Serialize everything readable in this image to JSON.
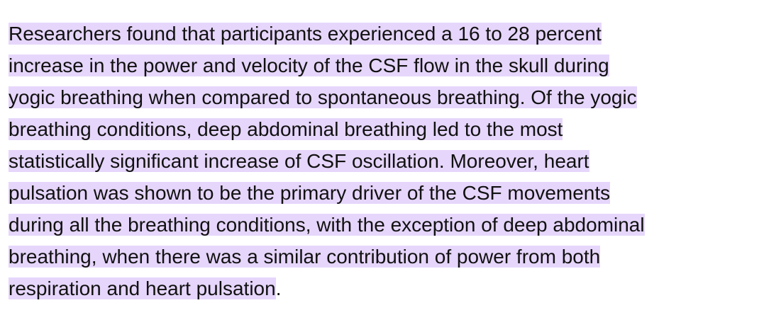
{
  "paragraph": {
    "lines": [
      "Researchers found that participants experienced a 16 to 28 percent",
      "increase in the power and velocity of the CSF flow in the skull during",
      "yogic breathing when compared to spontaneous breathing. Of the yogic",
      "breathing conditions, deep abdominal breathing led to the most",
      "statistically significant increase of CSF oscillation. Moreover, heart",
      "pulsation was shown to be the primary driver of the CSF movements",
      "during all the breathing conditions, with the exception of deep abdominal",
      "breathing, when there was a similar contribution of power from both",
      "respiration and heart pulsation"
    ],
    "trailing": "."
  }
}
